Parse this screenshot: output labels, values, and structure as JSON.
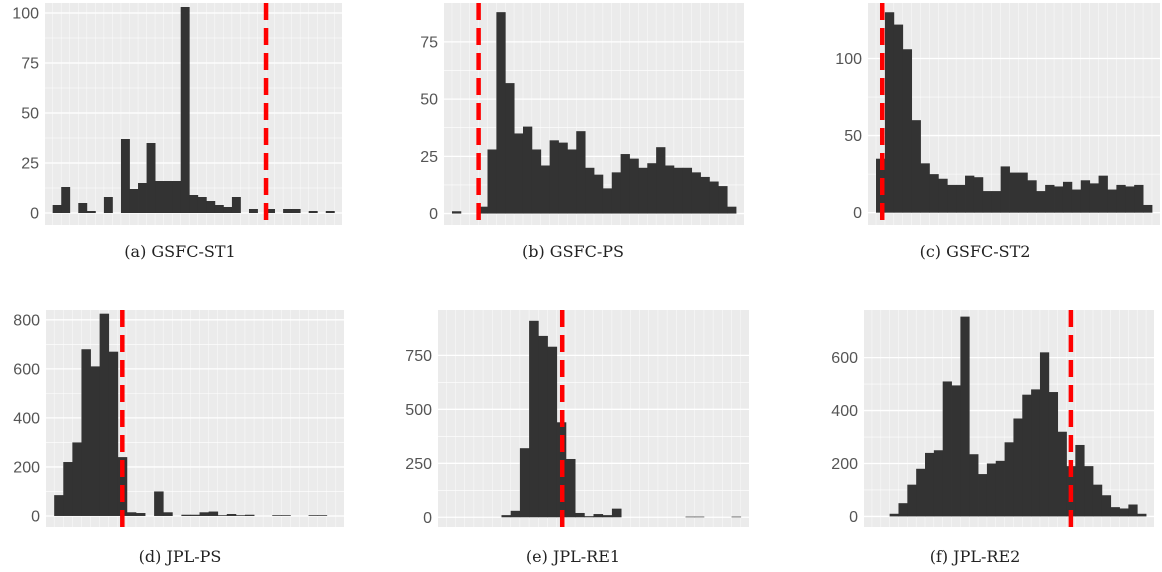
{
  "colors": {
    "panel_bg": "#ebebeb",
    "grid_major": "#ffffff",
    "bar": "#333333",
    "threshold": "#ff0000",
    "tick_text": "#555555"
  },
  "chart_data": [
    {
      "type": "bar",
      "caption": "(a) GSFC-ST1",
      "ylim": [
        -6,
        105
      ],
      "yticks": [
        0,
        25,
        50,
        75,
        100
      ],
      "threshold_bin": 25,
      "grid": true,
      "values": [
        4,
        13,
        0,
        5,
        1,
        0,
        8,
        0,
        37,
        12,
        15,
        35,
        16,
        16,
        16,
        103,
        9,
        8,
        6,
        4,
        3,
        8,
        0,
        2,
        0,
        2,
        0,
        2,
        2,
        0,
        1,
        0,
        1
      ]
    },
    {
      "type": "bar",
      "caption": "(b) GSFC-PS",
      "ylim": [
        -5,
        92
      ],
      "yticks": [
        0,
        25,
        50,
        75
      ],
      "threshold_bin": 3,
      "grid": true,
      "values": [
        1,
        0,
        0,
        3,
        28,
        88,
        57,
        35,
        38,
        28,
        21,
        32,
        31,
        28,
        36,
        20,
        17,
        11,
        18,
        26,
        24,
        20,
        22,
        29,
        21,
        20,
        20,
        18,
        16,
        14,
        12,
        3
      ]
    },
    {
      "type": "bar",
      "caption": "(c) GSFC-ST2",
      "ylim": [
        -8,
        136
      ],
      "yticks": [
        0,
        50,
        100
      ],
      "threshold_bin": 0.7,
      "grid": true,
      "values": [
        35,
        130,
        122,
        106,
        60,
        32,
        25,
        22,
        18,
        18,
        24,
        23,
        14,
        14,
        30,
        26,
        26,
        21,
        14,
        18,
        17,
        20,
        15,
        21,
        19,
        24,
        15,
        18,
        17,
        18,
        5
      ]
    },
    {
      "type": "bar",
      "caption": "(d) JPL-PS",
      "ylim": [
        -45,
        840
      ],
      "yticks": [
        0,
        200,
        400,
        600,
        800
      ],
      "threshold_bin": 7.5,
      "grid": true,
      "values": [
        85,
        220,
        300,
        680,
        610,
        825,
        670,
        240,
        15,
        12,
        0,
        100,
        15,
        0,
        5,
        5,
        15,
        18,
        3,
        8,
        3,
        5,
        0,
        0,
        3,
        3,
        0,
        0,
        3,
        3,
        0
      ]
    },
    {
      "type": "bar",
      "caption": "(e) JPL-RE1",
      "ylim": [
        -45,
        960
      ],
      "yticks": [
        0,
        250,
        500,
        750
      ],
      "threshold_bin": 12.6,
      "grid": true,
      "values": [
        0,
        0,
        0,
        0,
        0,
        0,
        10,
        30,
        320,
        910,
        840,
        790,
        440,
        270,
        20,
        5,
        15,
        10,
        40,
        0,
        0,
        0,
        0,
        0,
        0,
        0,
        3,
        3,
        0,
        0,
        0,
        3
      ]
    },
    {
      "type": "bar",
      "caption": "(f) JPL-RE2",
      "ylim": [
        -40,
        780
      ],
      "yticks": [
        0,
        200,
        400,
        600
      ],
      "threshold_bin": 22.5,
      "grid": true,
      "values": [
        0,
        0,
        10,
        50,
        120,
        180,
        240,
        250,
        510,
        495,
        755,
        235,
        160,
        200,
        210,
        280,
        370,
        460,
        480,
        620,
        470,
        320,
        190,
        270,
        190,
        120,
        80,
        35,
        30,
        45,
        10
      ]
    }
  ]
}
